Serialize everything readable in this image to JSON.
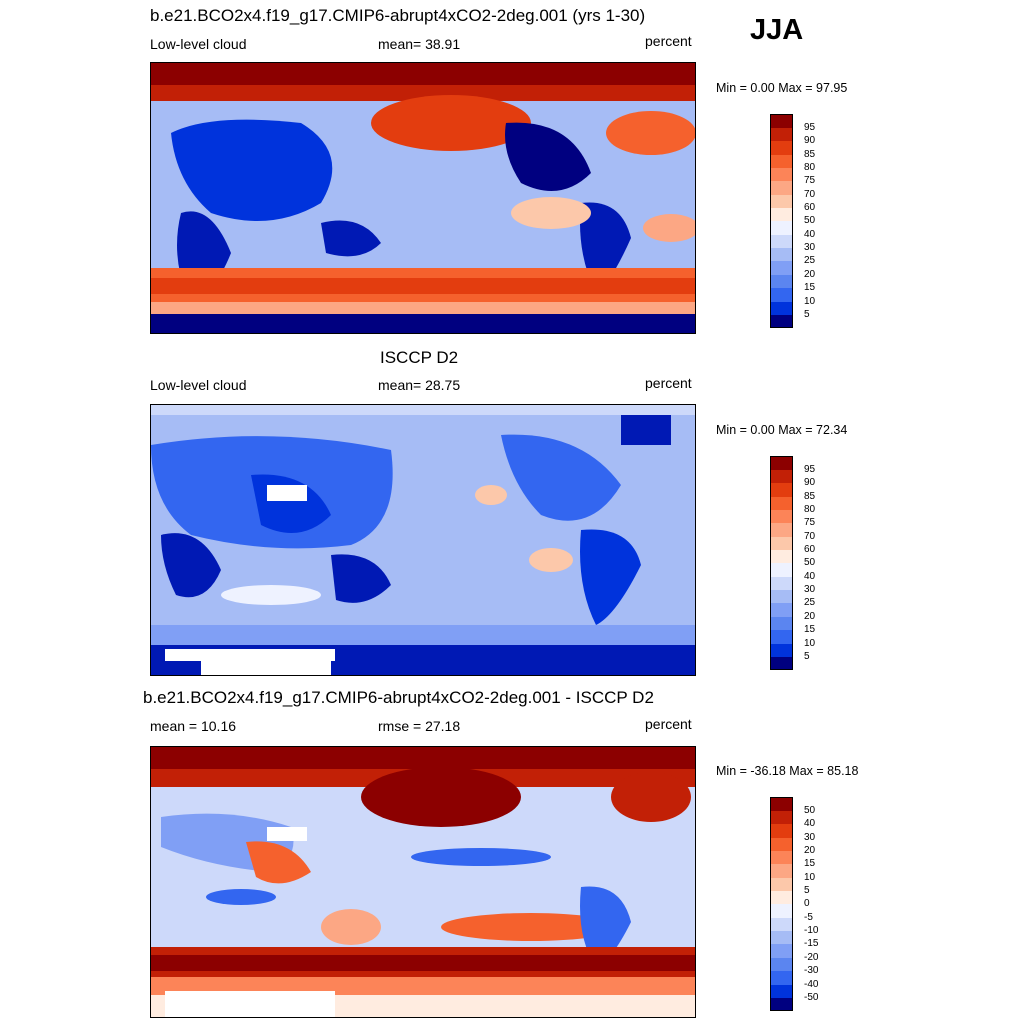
{
  "season": "JJA",
  "palette_full": [
    "#000080",
    "#0019b4",
    "#0033dc",
    "#1a4ce8",
    "#3366f0",
    "#5b85f0",
    "#809ff5",
    "#a6bcf5",
    "#cdd9fa",
    "#eef2ff",
    "#ffece0",
    "#fcc8aa",
    "#fca784",
    "#fc8458",
    "#f5612d",
    "#e33d0f",
    "#c22006",
    "#8c0000"
  ],
  "panels": [
    {
      "title": "b.e21.BCO2x4.f19_g17.CMIP6-abrupt4xCO2-2deg.001 (yrs 1-30)",
      "left": "Low-level cloud",
      "center": "mean=  38.91",
      "right": "percent",
      "minmax": "Min =   0.00 Max =  97.95",
      "colorbar_labels": [
        "95",
        "90",
        "85",
        "80",
        "75",
        "70",
        "60",
        "50",
        "40",
        "30",
        "25",
        "20",
        "15",
        "10",
        "5"
      ],
      "background": "#a6bcf5"
    },
    {
      "title": "ISCCP D2",
      "left": "Low-level cloud",
      "center": "mean=  28.75",
      "right": "percent",
      "minmax": "Min =   0.00 Max =  72.34",
      "colorbar_labels": [
        "95",
        "90",
        "85",
        "80",
        "75",
        "70",
        "60",
        "50",
        "40",
        "30",
        "25",
        "20",
        "15",
        "10",
        "5"
      ],
      "background": "#a6bcf5"
    },
    {
      "title": "b.e21.BCO2x4.f19_g17.CMIP6-abrupt4xCO2-2deg.001 - ISCCP D2",
      "left": "mean =  10.16",
      "center": "rmse =  27.18",
      "right": "percent",
      "minmax": "Min = -36.18 Max =  85.18",
      "colorbar_labels": [
        "50",
        "40",
        "30",
        "20",
        "15",
        "10",
        "5",
        "0",
        "-5",
        "-10",
        "-15",
        "-20",
        "-30",
        "-40",
        "-50"
      ],
      "background": "#cdd9fa"
    }
  ],
  "chart_data": [
    {
      "type": "heatmap",
      "title": "b.e21.BCO2x4.f19_g17.CMIP6-abrupt4xCO2-2deg.001 (yrs 1-30)",
      "variable": "Low-level cloud",
      "units": "percent",
      "mean": 38.91,
      "min": 0.0,
      "max": 97.95,
      "colorbar_levels": [
        5,
        10,
        15,
        20,
        25,
        30,
        40,
        50,
        60,
        70,
        75,
        80,
        85,
        90,
        95
      ]
    },
    {
      "type": "heatmap",
      "title": "ISCCP D2",
      "variable": "Low-level cloud",
      "units": "percent",
      "mean": 28.75,
      "min": 0.0,
      "max": 72.34,
      "colorbar_levels": [
        5,
        10,
        15,
        20,
        25,
        30,
        40,
        50,
        60,
        70,
        75,
        80,
        85,
        90,
        95
      ]
    },
    {
      "type": "heatmap",
      "title": "b.e21.BCO2x4.f19_g17.CMIP6-abrupt4xCO2-2deg.001 - ISCCP D2",
      "units": "percent",
      "mean": 10.16,
      "rmse": 27.18,
      "min": -36.18,
      "max": 85.18,
      "colorbar_levels": [
        -50,
        -40,
        -30,
        -20,
        -15,
        -10,
        -5,
        0,
        5,
        10,
        15,
        20,
        30,
        40,
        50
      ]
    }
  ]
}
